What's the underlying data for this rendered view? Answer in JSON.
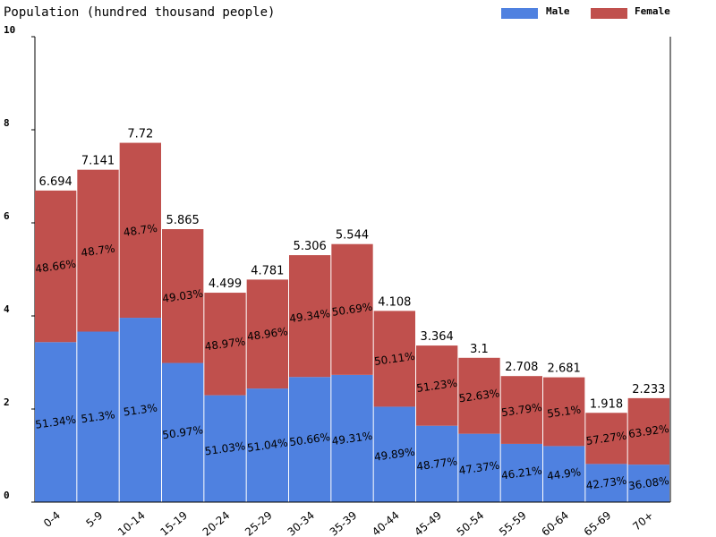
{
  "chart_data": {
    "type": "bar",
    "stacked": true,
    "title": "Population (hundred thousand people)",
    "ylim": [
      0,
      10
    ],
    "yticks": [
      0,
      2,
      4,
      6,
      8,
      10
    ],
    "categories": [
      "0-4",
      "5-9",
      "10-14",
      "15-19",
      "20-24",
      "25-29",
      "30-34",
      "35-39",
      "40-44",
      "45-49",
      "50-54",
      "55-59",
      "60-64",
      "65-69",
      "70+"
    ],
    "totals": [
      6.694,
      7.141,
      7.72,
      5.865,
      4.499,
      4.781,
      5.306,
      5.544,
      4.108,
      3.364,
      3.1,
      2.708,
      2.681,
      1.918,
      2.233
    ],
    "total_labels": [
      "6.694",
      "7.141",
      "7.72",
      "5.865",
      "4.499",
      "4.781",
      "5.306",
      "5.544",
      "4.108",
      "3.364",
      "3.1",
      "2.708",
      "2.681",
      "1.918",
      "2.233"
    ],
    "series": [
      {
        "name": "Male",
        "color": "#4f81e0",
        "percent": [
          51.34,
          51.3,
          51.3,
          50.97,
          51.03,
          51.04,
          50.66,
          49.31,
          49.89,
          48.77,
          47.37,
          46.21,
          44.9,
          42.73,
          36.08
        ],
        "labels": [
          "51.34%",
          "51.3%",
          "51.3%",
          "50.97%",
          "51.03%",
          "51.04%",
          "50.66%",
          "49.31%",
          "49.89%",
          "48.77%",
          "47.37%",
          "46.21%",
          "44.9%",
          "42.73%",
          "36.08%"
        ]
      },
      {
        "name": "Female",
        "color": "#c0504d",
        "percent": [
          48.66,
          48.7,
          48.7,
          49.03,
          48.97,
          48.96,
          49.34,
          50.69,
          50.11,
          51.23,
          52.63,
          53.79,
          55.1,
          57.27,
          63.92
        ],
        "labels": [
          "48.66%",
          "48.7%",
          "48.7%",
          "49.03%",
          "48.97%",
          "48.96%",
          "49.34%",
          "50.69%",
          "50.11%",
          "51.23%",
          "52.63%",
          "53.79%",
          "55.1%",
          "57.27%",
          "63.92%"
        ]
      }
    ],
    "legend_position": "top-right",
    "grid": false
  }
}
